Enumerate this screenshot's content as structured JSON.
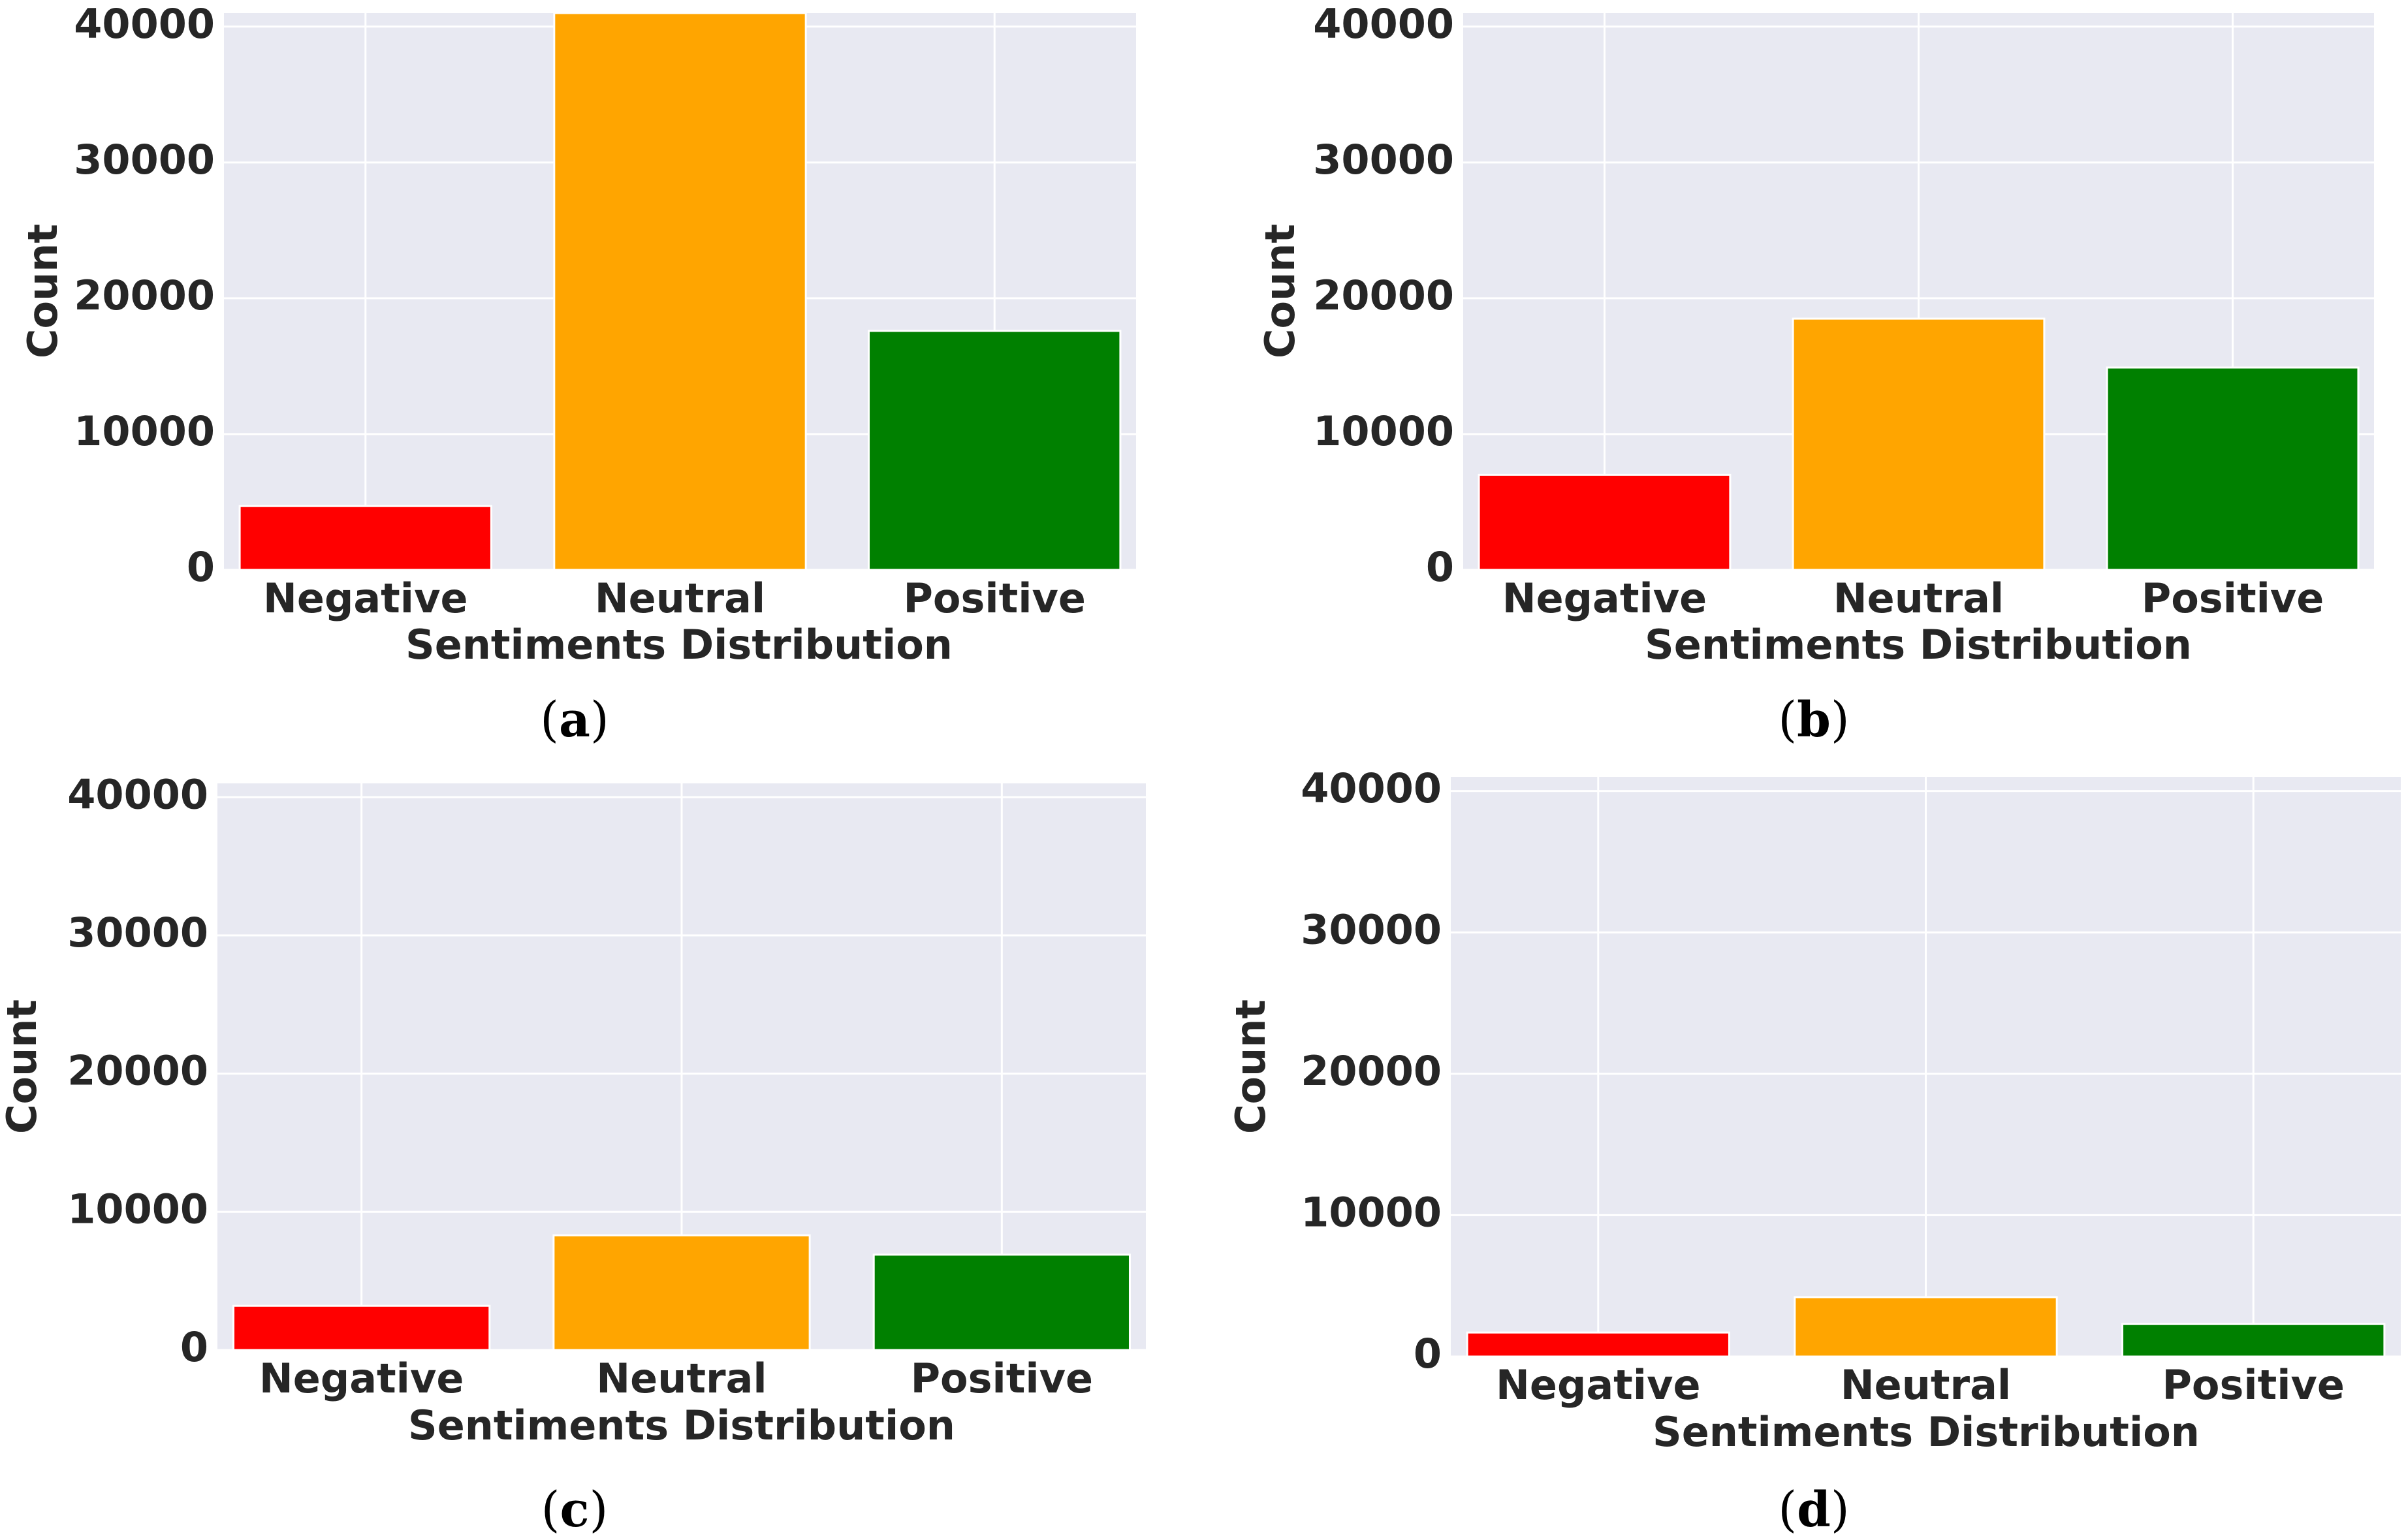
{
  "chart_data": [
    {
      "type": "bar",
      "caption": "a",
      "categories": [
        "Negative",
        "Neutral",
        "Positive"
      ],
      "values": [
        4700,
        41000,
        17600
      ],
      "colors": [
        "#ff0000",
        "#ffa500",
        "#008000"
      ],
      "title": "",
      "xlabel": "Sentiments Distribution",
      "ylabel": "Count",
      "ylim": [
        0,
        41000
      ],
      "yticks": [
        0,
        10000,
        20000,
        30000,
        40000
      ],
      "grid": true
    },
    {
      "type": "bar",
      "caption": "b",
      "categories": [
        "Negative",
        "Neutral",
        "Positive"
      ],
      "values": [
        7000,
        18500,
        14900
      ],
      "colors": [
        "#ff0000",
        "#ffa500",
        "#008000"
      ],
      "title": "",
      "xlabel": "Sentiments Distribution",
      "ylabel": "Count",
      "ylim": [
        0,
        41000
      ],
      "yticks": [
        0,
        10000,
        20000,
        30000,
        40000
      ],
      "grid": true
    },
    {
      "type": "bar",
      "caption": "c",
      "categories": [
        "Negative",
        "Neutral",
        "Positive"
      ],
      "values": [
        3200,
        8300,
        6900
      ],
      "colors": [
        "#ff0000",
        "#ffa500",
        "#008000"
      ],
      "title": "",
      "xlabel": "Sentiments Distribution",
      "ylabel": "Count",
      "ylim": [
        0,
        41000
      ],
      "yticks": [
        0,
        10000,
        20000,
        30000,
        40000
      ],
      "grid": true
    },
    {
      "type": "bar",
      "caption": "d",
      "categories": [
        "Negative",
        "Neutral",
        "Positive"
      ],
      "values": [
        1700,
        4200,
        2300
      ],
      "colors": [
        "#ff0000",
        "#ffa500",
        "#008000"
      ],
      "title": "",
      "xlabel": "Sentiments Distribution",
      "ylabel": "Count",
      "ylim": [
        0,
        41000
      ],
      "yticks": [
        0,
        10000,
        20000,
        30000,
        40000
      ],
      "grid": true
    }
  ]
}
